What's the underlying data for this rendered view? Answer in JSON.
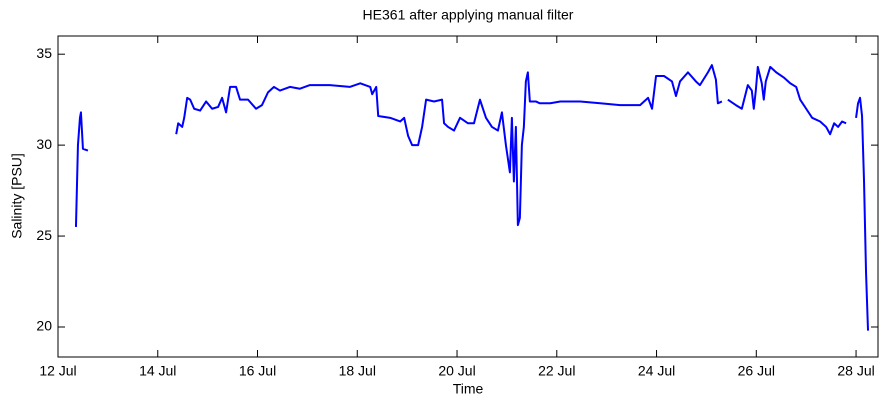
{
  "chart_data": {
    "type": "line",
    "title": "HE361 after applying manual filter",
    "x_label": "Time",
    "y_label": "Salinity [PSU]",
    "xlim": [
      12,
      28.44
    ],
    "xticks": [
      {
        "value": 12,
        "label": "12 Jul"
      },
      {
        "value": 14,
        "label": "14 Jul"
      },
      {
        "value": 16,
        "label": "16 Jul"
      },
      {
        "value": 18,
        "label": "18 Jul"
      },
      {
        "value": 20,
        "label": "20 Jul"
      },
      {
        "value": 22,
        "label": "22 Jul"
      },
      {
        "value": 24,
        "label": "24 Jul"
      },
      {
        "value": 26,
        "label": "26 Jul"
      },
      {
        "value": 28,
        "label": "28 Jul"
      }
    ],
    "ylim": [
      18.35,
      36
    ],
    "yticks": [
      20,
      25,
      30,
      35
    ],
    "grid": false,
    "x": [
      12.36,
      12.4,
      12.44,
      12.46,
      12.5,
      12.6,
      13.5,
      14.37,
      14.41,
      14.49,
      14.53,
      14.59,
      14.65,
      14.73,
      14.85,
      14.97,
      15.09,
      15.21,
      15.29,
      15.37,
      15.45,
      15.57,
      15.65,
      15.81,
      15.97,
      16.09,
      16.21,
      16.33,
      16.45,
      16.65,
      16.85,
      17.05,
      17.45,
      17.85,
      18.06,
      18.26,
      18.3,
      18.38,
      18.42,
      18.66,
      18.86,
      18.94,
      19.02,
      19.1,
      19.22,
      19.3,
      19.38,
      19.54,
      19.7,
      19.74,
      19.82,
      19.94,
      20.06,
      20.22,
      20.34,
      20.46,
      20.58,
      20.7,
      20.82,
      20.9,
      20.98,
      21.06,
      21.1,
      21.14,
      21.18,
      21.22,
      21.26,
      21.3,
      21.34,
      21.38,
      21.42,
      21.46,
      21.58,
      21.66,
      21.87,
      22.07,
      22.47,
      22.87,
      23.27,
      23.67,
      23.83,
      23.91,
      23.99,
      24.15,
      24.31,
      24.39,
      24.47,
      24.63,
      24.79,
      24.87,
      25.03,
      25.11,
      25.19,
      25.23,
      25.31,
      25.37,
      25.43,
      25.59,
      25.71,
      25.83,
      25.91,
      25.95,
      25.99,
      26.03,
      26.11,
      26.15,
      26.19,
      26.28,
      26.4,
      26.56,
      26.68,
      26.8,
      26.88,
      27.0,
      27.12,
      27.28,
      27.4,
      27.48,
      27.56,
      27.64,
      27.72,
      27.8,
      27.9,
      28.0,
      28.04,
      28.08,
      28.12,
      28.16,
      28.2,
      28.24
    ],
    "series": [
      {
        "name": "Salinity",
        "color": "#0000ff",
        "values": [
          25.5,
          30.0,
          31.5,
          31.8,
          29.8,
          29.7,
          null,
          30.6,
          31.2,
          31.0,
          31.5,
          32.6,
          32.5,
          32.0,
          31.9,
          32.4,
          32.0,
          32.1,
          32.6,
          31.8,
          33.2,
          33.2,
          32.5,
          32.5,
          32.0,
          32.2,
          32.9,
          33.2,
          33.0,
          33.2,
          33.1,
          33.3,
          33.3,
          33.2,
          33.4,
          33.2,
          32.8,
          33.2,
          31.6,
          31.5,
          31.3,
          31.5,
          30.5,
          30.0,
          30.0,
          31.0,
          32.5,
          32.4,
          32.5,
          31.2,
          31.0,
          30.8,
          31.5,
          31.2,
          31.2,
          32.5,
          31.5,
          31.0,
          30.8,
          31.8,
          30.0,
          28.5,
          31.5,
          28.0,
          31.0,
          25.6,
          26.0,
          30.0,
          31.0,
          33.5,
          34.0,
          32.4,
          32.4,
          32.3,
          32.3,
          32.4,
          32.4,
          32.3,
          32.2,
          32.2,
          32.6,
          32.0,
          33.8,
          33.8,
          33.5,
          32.7,
          33.5,
          34.0,
          33.5,
          33.3,
          34.0,
          34.4,
          33.6,
          32.3,
          32.4,
          null,
          32.5,
          32.2,
          32.0,
          33.3,
          33.0,
          32.0,
          33.0,
          34.3,
          33.4,
          32.5,
          33.5,
          34.3,
          34.0,
          33.7,
          33.4,
          33.2,
          32.5,
          32.0,
          31.5,
          31.3,
          31.0,
          30.6,
          31.2,
          31.0,
          31.3,
          31.2,
          null,
          31.5,
          32.3,
          32.6,
          31.6,
          28.0,
          23.0,
          19.8
        ]
      }
    ]
  }
}
